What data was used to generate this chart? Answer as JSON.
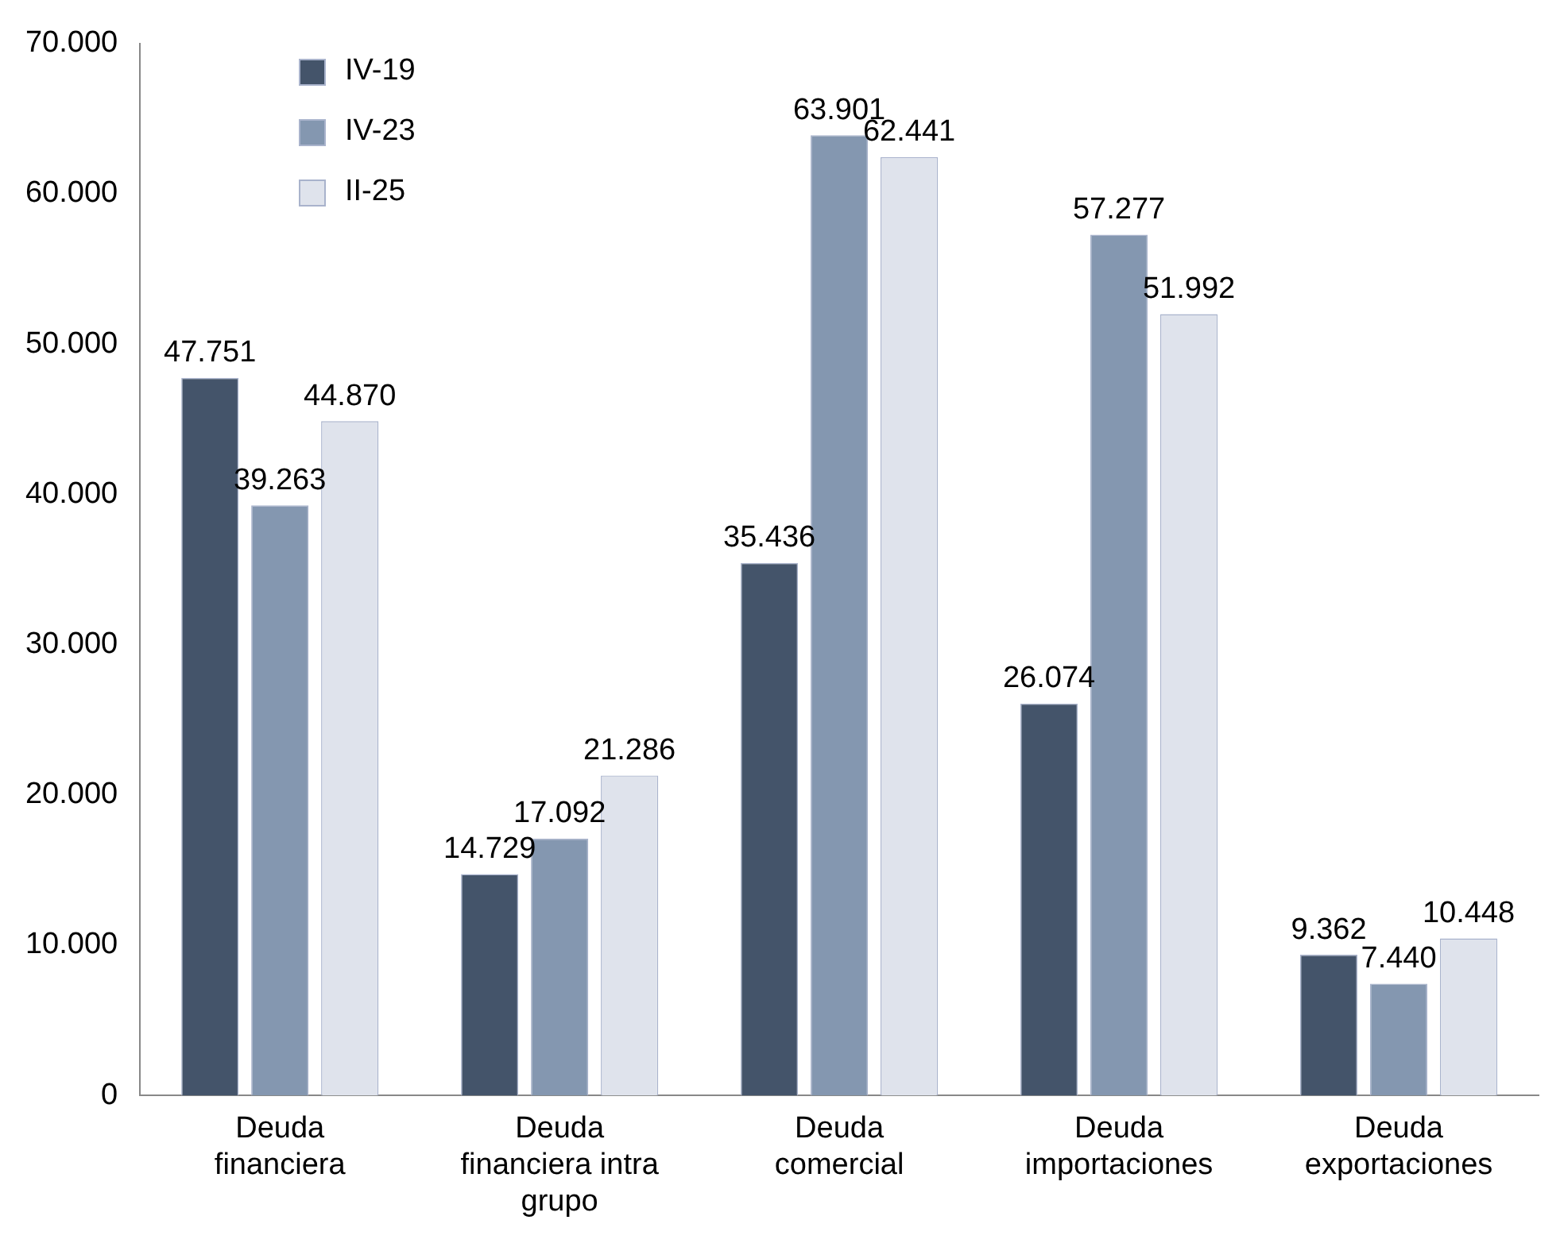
{
  "chart_data": {
    "type": "bar",
    "categories": [
      "Deuda\nfinanciera",
      "Deuda\nfinanciera intra\ngrupo",
      "Deuda\ncomercial",
      "Deuda\nimportaciones",
      "Deuda\nexportaciones"
    ],
    "series": [
      {
        "name": "IV-19",
        "color": "#44546a",
        "values": [
          47751,
          14729,
          35436,
          26074,
          9362
        ],
        "value_labels": [
          "47.751",
          "14.729",
          "35.436",
          "26.074",
          "9.362"
        ]
      },
      {
        "name": "IV-23",
        "color": "#8497b0",
        "values": [
          39263,
          17092,
          63901,
          57277,
          7440
        ],
        "value_labels": [
          "39.263",
          "17.092",
          "63.901",
          "57.277",
          "7.440"
        ]
      },
      {
        "name": "II-25",
        "color": "#dfe3ec",
        "values": [
          44870,
          21286,
          62441,
          51992,
          10448
        ],
        "value_labels": [
          "44.870",
          "21.286",
          "62.441",
          "51.992",
          "10.448"
        ]
      }
    ],
    "ylim": [
      0,
      70000
    ],
    "yticks": [
      0,
      {
        "value": 10000,
        "label": "10.000"
      },
      {
        "value": 20000,
        "label": "20.000"
      },
      {
        "value": 30000,
        "label": "30.000"
      },
      {
        "value": 40000,
        "label": "40.000"
      },
      {
        "value": 50000,
        "label": "50.000"
      },
      {
        "value": 60000,
        "label": "60.000"
      },
      {
        "value": 70000,
        "label": "70.000"
      }
    ],
    "grid": false,
    "legend": "top left"
  }
}
